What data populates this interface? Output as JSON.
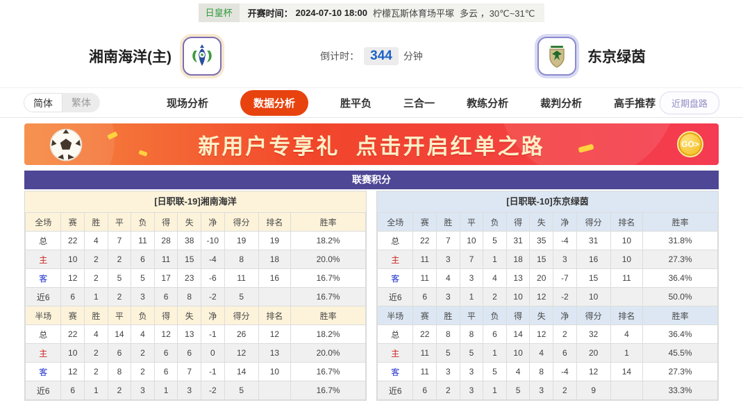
{
  "top_bar": {
    "league": "日皇杯",
    "kickoff_label": "开赛时间：",
    "kickoff_time": "2024-07-10 18:00",
    "venue": "柠檬瓦斯体育场平塚",
    "weather": "多云 ，30℃~31℃"
  },
  "match_header": {
    "home_name": "湘南海洋(主)",
    "away_name": "东京绿茵",
    "countdown_label": "倒计时：",
    "countdown_value": "344",
    "countdown_unit": "分钟"
  },
  "nav": {
    "lang": {
      "simplified": "简体",
      "traditional": "繁体"
    },
    "tabs": [
      {
        "label": "现场分析",
        "active": false
      },
      {
        "label": "数据分析",
        "active": true
      },
      {
        "label": "胜平负",
        "active": false
      },
      {
        "label": "三合一",
        "active": false
      },
      {
        "label": "教练分析",
        "active": false
      },
      {
        "label": "裁判分析",
        "active": false
      },
      {
        "label": "高手推荐",
        "active": false
      }
    ],
    "recent_trend": "近期盘路"
  },
  "banner": {
    "headline": "新用户专享礼  点击开启红单之路",
    "go_label": "GO>"
  },
  "league_table": {
    "title": "联赛积分",
    "home": {
      "header": "[日职联-19]湘南海洋",
      "sections": [
        {
          "head_label": "全场",
          "cols": [
            "赛",
            "胜",
            "平",
            "负",
            "得",
            "失",
            "净",
            "得分",
            "排名",
            "胜率"
          ],
          "rows": [
            {
              "label": "总",
              "type": "total",
              "cells": [
                "22",
                "4",
                "7",
                "11",
                "28",
                "38",
                "-10",
                "19",
                "19",
                "18.2%"
              ]
            },
            {
              "label": "主",
              "type": "home",
              "cells": [
                "10",
                "2",
                "2",
                "6",
                "11",
                "15",
                "-4",
                "8",
                "18",
                "20.0%"
              ]
            },
            {
              "label": "客",
              "type": "away",
              "cells": [
                "12",
                "2",
                "5",
                "5",
                "17",
                "23",
                "-6",
                "11",
                "16",
                "16.7%"
              ]
            },
            {
              "label": "近6",
              "type": "recent",
              "cells": [
                "6",
                "1",
                "2",
                "3",
                "6",
                "8",
                "-2",
                "5",
                "",
                "16.7%"
              ]
            }
          ]
        },
        {
          "head_label": "半场",
          "cols": [
            "赛",
            "胜",
            "平",
            "负",
            "得",
            "失",
            "净",
            "得分",
            "排名",
            "胜率"
          ],
          "rows": [
            {
              "label": "总",
              "type": "total",
              "cells": [
                "22",
                "4",
                "14",
                "4",
                "12",
                "13",
                "-1",
                "26",
                "12",
                "18.2%"
              ]
            },
            {
              "label": "主",
              "type": "home",
              "cells": [
                "10",
                "2",
                "6",
                "2",
                "6",
                "6",
                "0",
                "12",
                "13",
                "20.0%"
              ]
            },
            {
              "label": "客",
              "type": "away",
              "cells": [
                "12",
                "2",
                "8",
                "2",
                "6",
                "7",
                "-1",
                "14",
                "10",
                "16.7%"
              ]
            },
            {
              "label": "近6",
              "type": "recent",
              "cells": [
                "6",
                "1",
                "2",
                "3",
                "1",
                "3",
                "-2",
                "5",
                "",
                "16.7%"
              ]
            }
          ]
        }
      ]
    },
    "away": {
      "header": "[日职联-10]东京绿茵",
      "sections": [
        {
          "head_label": "全场",
          "cols": [
            "赛",
            "胜",
            "平",
            "负",
            "得",
            "失",
            "净",
            "得分",
            "排名",
            "胜率"
          ],
          "rows": [
            {
              "label": "总",
              "type": "total",
              "cells": [
                "22",
                "7",
                "10",
                "5",
                "31",
                "35",
                "-4",
                "31",
                "10",
                "31.8%"
              ]
            },
            {
              "label": "主",
              "type": "home",
              "cells": [
                "11",
                "3",
                "7",
                "1",
                "18",
                "15",
                "3",
                "16",
                "10",
                "27.3%"
              ]
            },
            {
              "label": "客",
              "type": "away",
              "cells": [
                "11",
                "4",
                "3",
                "4",
                "13",
                "20",
                "-7",
                "15",
                "11",
                "36.4%"
              ]
            },
            {
              "label": "近6",
              "type": "recent",
              "cells": [
                "6",
                "3",
                "1",
                "2",
                "10",
                "12",
                "-2",
                "10",
                "",
                "50.0%"
              ]
            }
          ]
        },
        {
          "head_label": "半场",
          "cols": [
            "赛",
            "胜",
            "平",
            "负",
            "得",
            "失",
            "净",
            "得分",
            "排名",
            "胜率"
          ],
          "rows": [
            {
              "label": "总",
              "type": "total",
              "cells": [
                "22",
                "8",
                "8",
                "6",
                "14",
                "12",
                "2",
                "32",
                "4",
                "36.4%"
              ]
            },
            {
              "label": "主",
              "type": "home",
              "cells": [
                "11",
                "5",
                "5",
                "1",
                "10",
                "4",
                "6",
                "20",
                "1",
                "45.5%"
              ]
            },
            {
              "label": "客",
              "type": "away",
              "cells": [
                "11",
                "3",
                "3",
                "5",
                "4",
                "8",
                "-4",
                "12",
                "14",
                "27.3%"
              ]
            },
            {
              "label": "近6",
              "type": "recent",
              "cells": [
                "6",
                "2",
                "3",
                "1",
                "5",
                "3",
                "2",
                "9",
                "",
                "33.3%"
              ]
            }
          ]
        }
      ]
    }
  },
  "colors": {
    "accent_orange": "#e8430f",
    "title_purple": "#4e4795",
    "home_header_bg": "#fcf3da",
    "away_header_bg": "#dce7f3",
    "home_row_red": "#cc2222",
    "away_row_blue": "#2233cc",
    "countdown_blue": "#1e62c8",
    "league_green": "#2e9b3e",
    "banner_gradient": [
      "#f6883f",
      "#f2462b",
      "#f43b52"
    ]
  }
}
